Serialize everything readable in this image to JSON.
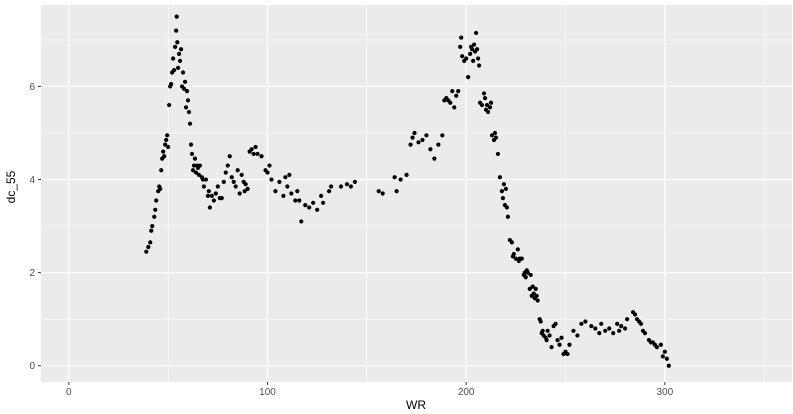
{
  "chart_data": {
    "type": "scatter",
    "xlabel": "WR",
    "ylabel": "dc_55",
    "xlim": [
      -14,
      364
    ],
    "ylim": [
      -0.35,
      7.75
    ],
    "x_ticks": [
      0,
      100,
      200,
      300
    ],
    "x_minor": [
      50,
      150,
      250,
      350
    ],
    "y_ticks": [
      0,
      2,
      4,
      6
    ],
    "y_minor": [
      1,
      3,
      5,
      7
    ],
    "grid": true,
    "colors": {
      "panel": "#EBEBEB",
      "grid": "#FFFFFF",
      "point": "#000000",
      "tick_label": "#4D4D4D"
    },
    "points": [
      [
        39,
        2.45
      ],
      [
        40,
        2.55
      ],
      [
        41,
        2.65
      ],
      [
        41.5,
        2.9
      ],
      [
        42,
        3.0
      ],
      [
        43,
        3.2
      ],
      [
        43.5,
        3.35
      ],
      [
        44,
        3.55
      ],
      [
        45,
        3.75
      ],
      [
        45.5,
        3.85
      ],
      [
        46,
        3.8
      ],
      [
        46.5,
        4.2
      ],
      [
        47,
        4.45
      ],
      [
        47.5,
        4.6
      ],
      [
        48,
        4.5
      ],
      [
        48.5,
        4.75
      ],
      [
        49,
        4.85
      ],
      [
        49.5,
        4.95
      ],
      [
        50,
        4.7
      ],
      [
        50.5,
        5.6
      ],
      [
        51,
        6.0
      ],
      [
        51.5,
        6.05
      ],
      [
        52,
        6.3
      ],
      [
        52.5,
        6.6
      ],
      [
        53,
        6.35
      ],
      [
        53.5,
        6.85
      ],
      [
        54,
        7.2
      ],
      [
        54.3,
        7.5
      ],
      [
        54.6,
        6.95
      ],
      [
        55,
        6.4
      ],
      [
        55.5,
        6.7
      ],
      [
        56,
        6.55
      ],
      [
        56.5,
        6.8
      ],
      [
        57,
        6.0
      ],
      [
        57.5,
        6.3
      ],
      [
        58,
        5.95
      ],
      [
        58.5,
        6.1
      ],
      [
        59,
        5.55
      ],
      [
        59.5,
        5.9
      ],
      [
        60,
        5.7
      ],
      [
        60.5,
        5.45
      ],
      [
        61,
        5.2
      ],
      [
        61.5,
        4.75
      ],
      [
        62,
        4.55
      ],
      [
        62.5,
        4.2
      ],
      [
        63,
        4.3
      ],
      [
        63.5,
        4.45
      ],
      [
        64,
        4.15
      ],
      [
        64.5,
        4.3
      ],
      [
        65,
        4.25
      ],
      [
        65.5,
        4.1
      ],
      [
        66,
        4.3
      ],
      [
        67,
        4.05
      ],
      [
        67.5,
        4.0
      ],
      [
        68,
        3.85
      ],
      [
        69,
        4.0
      ],
      [
        70,
        3.65
      ],
      [
        70.5,
        3.75
      ],
      [
        71,
        3.4
      ],
      [
        72,
        3.65
      ],
      [
        73,
        3.55
      ],
      [
        74,
        3.7
      ],
      [
        75,
        3.85
      ],
      [
        76,
        3.6
      ],
      [
        77,
        3.6
      ],
      [
        78,
        3.95
      ],
      [
        79,
        4.15
      ],
      [
        80,
        4.3
      ],
      [
        81,
        4.5
      ],
      [
        82,
        4.05
      ],
      [
        83,
        3.95
      ],
      [
        84,
        3.85
      ],
      [
        85,
        4.2
      ],
      [
        86,
        3.7
      ],
      [
        87,
        4.1
      ],
      [
        88,
        3.95
      ],
      [
        88.5,
        3.75
      ],
      [
        89,
        3.9
      ],
      [
        90,
        3.8
      ],
      [
        91,
        4.6
      ],
      [
        92,
        4.65
      ],
      [
        93,
        4.55
      ],
      [
        94,
        4.7
      ],
      [
        95,
        4.55
      ],
      [
        97,
        4.5
      ],
      [
        99,
        4.2
      ],
      [
        100,
        4.15
      ],
      [
        101,
        4.3
      ],
      [
        102,
        4.0
      ],
      [
        104,
        3.75
      ],
      [
        106,
        3.95
      ],
      [
        108,
        3.65
      ],
      [
        109,
        4.05
      ],
      [
        110,
        3.85
      ],
      [
        111,
        4.1
      ],
      [
        112,
        3.7
      ],
      [
        114,
        3.55
      ],
      [
        115,
        3.75
      ],
      [
        116,
        3.55
      ],
      [
        117,
        3.1
      ],
      [
        119,
        3.45
      ],
      [
        121,
        3.4
      ],
      [
        123,
        3.5
      ],
      [
        125,
        3.35
      ],
      [
        127,
        3.65
      ],
      [
        128,
        3.5
      ],
      [
        131,
        3.75
      ],
      [
        132,
        3.85
      ],
      [
        137,
        3.85
      ],
      [
        140,
        3.9
      ],
      [
        142,
        3.85
      ],
      [
        144,
        3.95
      ],
      [
        156,
        3.75
      ],
      [
        158,
        3.7
      ],
      [
        164,
        4.05
      ],
      [
        165,
        3.75
      ],
      [
        167,
        4.0
      ],
      [
        170,
        4.1
      ],
      [
        172,
        4.75
      ],
      [
        173,
        4.9
      ],
      [
        174,
        5.0
      ],
      [
        176,
        4.8
      ],
      [
        178,
        4.85
      ],
      [
        180,
        4.95
      ],
      [
        182,
        4.65
      ],
      [
        184,
        4.45
      ],
      [
        186,
        4.75
      ],
      [
        188,
        4.95
      ],
      [
        189,
        5.7
      ],
      [
        190,
        5.75
      ],
      [
        191,
        5.7
      ],
      [
        192,
        5.65
      ],
      [
        193,
        5.9
      ],
      [
        194,
        5.55
      ],
      [
        195,
        5.8
      ],
      [
        196,
        5.9
      ],
      [
        197,
        6.85
      ],
      [
        197.5,
        7.05
      ],
      [
        198,
        6.65
      ],
      [
        199,
        6.55
      ],
      [
        200,
        6.6
      ],
      [
        201,
        6.2
      ],
      [
        202,
        6.7
      ],
      [
        202.5,
        6.85
      ],
      [
        203,
        6.8
      ],
      [
        203.5,
        6.55
      ],
      [
        204,
        6.9
      ],
      [
        204.5,
        6.75
      ],
      [
        205,
        7.15
      ],
      [
        205.5,
        6.8
      ],
      [
        206,
        6.6
      ],
      [
        206.5,
        6.45
      ],
      [
        207,
        5.65
      ],
      [
        208,
        5.6
      ],
      [
        209,
        5.85
      ],
      [
        209.5,
        5.75
      ],
      [
        210,
        5.5
      ],
      [
        210.5,
        5.6
      ],
      [
        211,
        5.45
      ],
      [
        212,
        5.55
      ],
      [
        212.5,
        5.65
      ],
      [
        213,
        4.95
      ],
      [
        214,
        4.85
      ],
      [
        214.5,
        5.0
      ],
      [
        215,
        4.9
      ],
      [
        216,
        4.55
      ],
      [
        217,
        4.05
      ],
      [
        218,
        3.75
      ],
      [
        218.5,
        3.6
      ],
      [
        219,
        3.9
      ],
      [
        219.5,
        3.45
      ],
      [
        220,
        3.8
      ],
      [
        220.5,
        3.4
      ],
      [
        221,
        3.2
      ],
      [
        222,
        2.7
      ],
      [
        223,
        2.65
      ],
      [
        223.5,
        2.35
      ],
      [
        224,
        2.4
      ],
      [
        225,
        2.3
      ],
      [
        226,
        2.5
      ],
      [
        226.5,
        2.25
      ],
      [
        227,
        2.3
      ],
      [
        228,
        2.3
      ],
      [
        229,
        1.95
      ],
      [
        229.5,
        2.0
      ],
      [
        230,
        1.9
      ],
      [
        230.5,
        2.05
      ],
      [
        231,
        2.0
      ],
      [
        232,
        1.65
      ],
      [
        232.5,
        1.95
      ],
      [
        233,
        1.5
      ],
      [
        233.5,
        1.7
      ],
      [
        234,
        1.55
      ],
      [
        234.5,
        1.45
      ],
      [
        235,
        1.65
      ],
      [
        235.5,
        1.5
      ],
      [
        236,
        1.4
      ],
      [
        237,
        1.0
      ],
      [
        237.5,
        0.95
      ],
      [
        238,
        0.7
      ],
      [
        238.5,
        0.75
      ],
      [
        239,
        0.65
      ],
      [
        240,
        0.6
      ],
      [
        240.5,
        0.55
      ],
      [
        241,
        0.75
      ],
      [
        242,
        0.65
      ],
      [
        243,
        0.4
      ],
      [
        244,
        0.85
      ],
      [
        245,
        0.9
      ],
      [
        246,
        0.55
      ],
      [
        247,
        0.45
      ],
      [
        248,
        0.6
      ],
      [
        249,
        0.25
      ],
      [
        250,
        0.3
      ],
      [
        251,
        0.25
      ],
      [
        252,
        0.45
      ],
      [
        254,
        0.75
      ],
      [
        256,
        0.65
      ],
      [
        258,
        0.9
      ],
      [
        260,
        0.95
      ],
      [
        263,
        0.85
      ],
      [
        265,
        0.8
      ],
      [
        267,
        0.7
      ],
      [
        268,
        0.9
      ],
      [
        270,
        0.75
      ],
      [
        272,
        0.8
      ],
      [
        274,
        0.7
      ],
      [
        276,
        0.9
      ],
      [
        277,
        0.75
      ],
      [
        278,
        0.85
      ],
      [
        280,
        0.8
      ],
      [
        281,
        1.0
      ],
      [
        284,
        1.15
      ],
      [
        285,
        1.1
      ],
      [
        286,
        1.0
      ],
      [
        287,
        0.95
      ],
      [
        288,
        0.9
      ],
      [
        289,
        0.75
      ],
      [
        290,
        0.7
      ],
      [
        292,
        0.55
      ],
      [
        293,
        0.5
      ],
      [
        294,
        0.5
      ],
      [
        295,
        0.45
      ],
      [
        296,
        0.4
      ],
      [
        298,
        0.45
      ],
      [
        299,
        0.2
      ],
      [
        300,
        0.3
      ],
      [
        301,
        0.15
      ],
      [
        302,
        0.0
      ]
    ]
  }
}
